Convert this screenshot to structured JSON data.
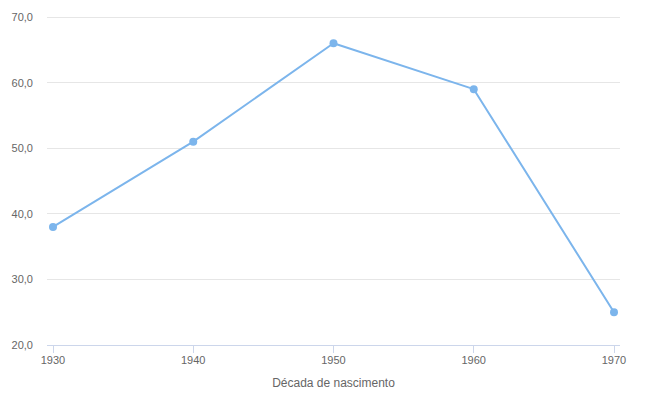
{
  "chart_data": {
    "type": "line",
    "x_label": "Década de nascimento",
    "categories": [
      "1930",
      "1940",
      "1950",
      "1960",
      "1970"
    ],
    "values": [
      38,
      51,
      66,
      59,
      25
    ],
    "color": "#7cb5ec",
    "marker": "circle",
    "ylim": [
      20,
      70
    ],
    "yticks": [
      {
        "value": 20,
        "label": "20,0"
      },
      {
        "value": 30,
        "label": "30,0"
      },
      {
        "value": 40,
        "label": "40,0"
      },
      {
        "value": 50,
        "label": "50,0"
      },
      {
        "value": 60,
        "label": "60,0"
      },
      {
        "value": 70,
        "label": "70,0"
      }
    ],
    "grid": true
  }
}
